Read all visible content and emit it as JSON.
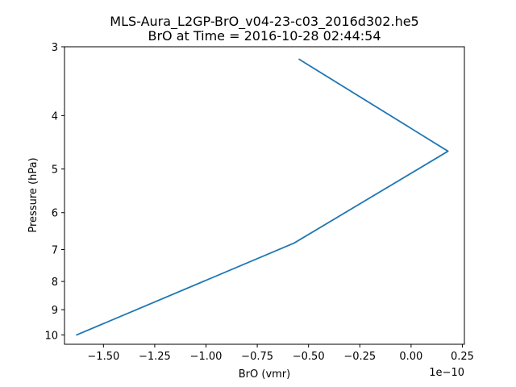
{
  "chart_data": {
    "type": "line",
    "title_line1": "MLS-Aura_L2GP-BrO_v04-23-c03_2016d302.he5",
    "title_line2": "BrO at Time = 2016-10-28 02:44:54",
    "xlabel": "BrO (vmr)",
    "ylabel": "Pressure (hPa)",
    "x_offset_label": "1e−10",
    "xlim": [
      -1.69,
      0.26
    ],
    "ylim": [
      10.4,
      3.0
    ],
    "yscale": "log",
    "grid": false,
    "series": [
      {
        "color": "#1f77b4",
        "points": [
          {
            "x": -0.545,
            "y": 3.162
          },
          {
            "x": 0.18,
            "y": 4.642
          },
          {
            "x": -0.57,
            "y": 6.813
          },
          {
            "x": -1.63,
            "y": 10.0
          }
        ]
      }
    ],
    "xticks": [
      {
        "value": -1.5,
        "label": "−1.50"
      },
      {
        "value": -1.25,
        "label": "−1.25"
      },
      {
        "value": -1.0,
        "label": "−1.00"
      },
      {
        "value": -0.75,
        "label": "−0.75"
      },
      {
        "value": -0.5,
        "label": "−0.50"
      },
      {
        "value": -0.25,
        "label": "−0.25"
      },
      {
        "value": 0.0,
        "label": "0.00"
      },
      {
        "value": 0.25,
        "label": "0.25"
      }
    ],
    "yticks": [
      {
        "value": 3,
        "label": "3"
      },
      {
        "value": 4,
        "label": "4"
      },
      {
        "value": 5,
        "label": "5"
      },
      {
        "value": 6,
        "label": "6"
      },
      {
        "value": 7,
        "label": "7"
      },
      {
        "value": 8,
        "label": "8"
      },
      {
        "value": 9,
        "label": "9"
      },
      {
        "value": 10,
        "label": "10"
      }
    ]
  }
}
